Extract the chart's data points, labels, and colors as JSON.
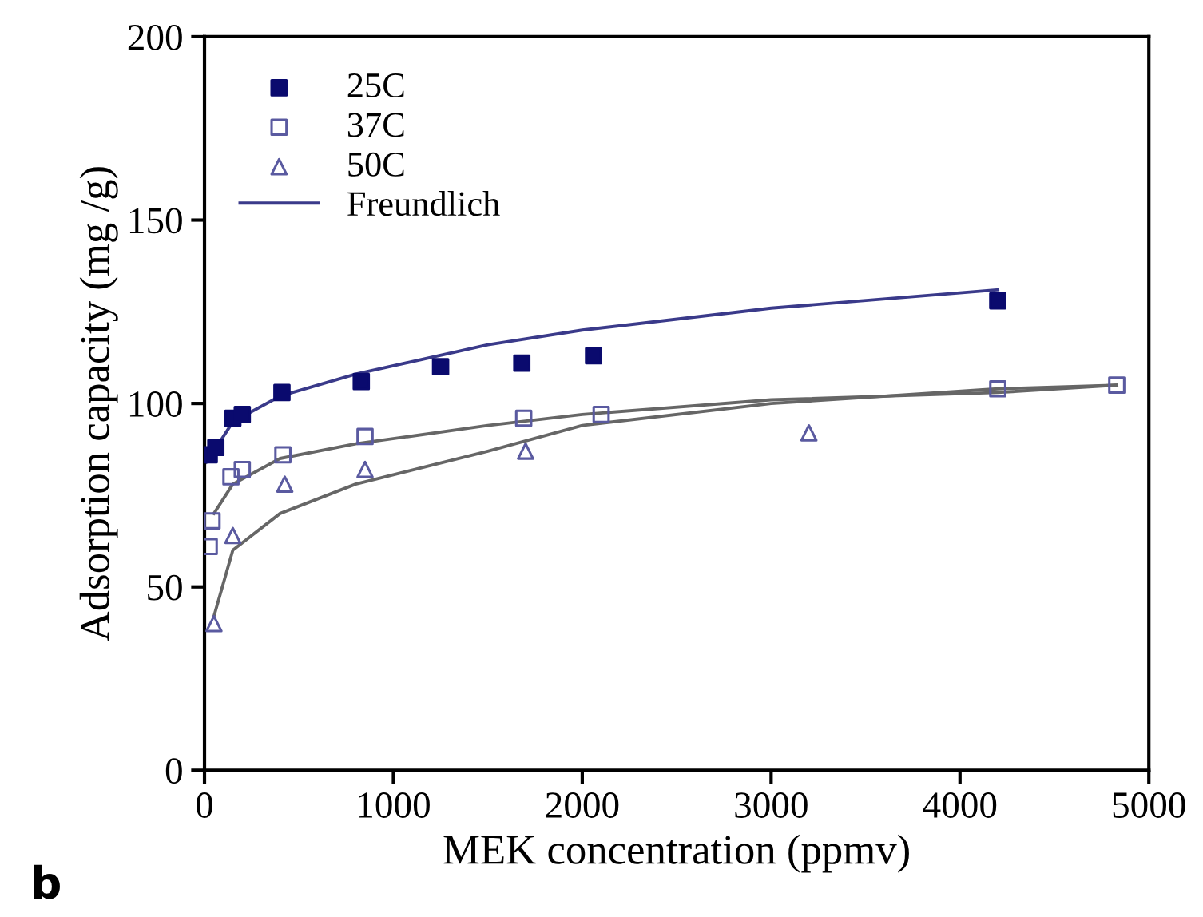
{
  "chart_data": {
    "type": "scatter",
    "xlabel": "MEK concentration (ppmv)",
    "ylabel": "Adsorption capacity (mg /g)",
    "annotations": [
      "b"
    ],
    "xlim": [
      0,
      5000
    ],
    "xticks": [
      0,
      1000,
      2000,
      3000,
      4000,
      5000
    ],
    "ylim": [
      0,
      200
    ],
    "yticks": [
      0,
      50,
      100,
      150,
      200
    ],
    "grid": false,
    "legend": "top left",
    "series": [
      {
        "name": "25C",
        "marker": "square",
        "color": "#0a0a6e",
        "x": [
          25,
          60,
          150,
          200,
          410,
          830,
          1250,
          1680,
          2060,
          4200
        ],
        "values": [
          86,
          88,
          96,
          97,
          103,
          106,
          110,
          111,
          113,
          128
        ]
      },
      {
        "name": "37C",
        "marker": "square",
        "color": "#5a5aa0",
        "x": [
          25,
          40,
          140,
          200,
          415,
          850,
          1690,
          2100,
          4200,
          4830
        ],
        "values": [
          61,
          68,
          80,
          82,
          86,
          91,
          96,
          97,
          104,
          105
        ]
      },
      {
        "name": "50C",
        "marker": "triangle",
        "color": "#5a5aa0",
        "x": [
          50,
          150,
          425,
          850,
          1700,
          3200
        ],
        "values": [
          40,
          64,
          78,
          82,
          87,
          92
        ]
      },
      {
        "name": "Freundlich",
        "type": "line",
        "line_style": "solid",
        "color": "#3a3a8a",
        "x": [
          10,
          50,
          150,
          400,
          800,
          1500,
          2000,
          3000,
          4200
        ],
        "values": [
          84,
          87,
          95,
          102,
          108,
          116,
          120,
          126,
          131
        ]
      },
      {
        "type": "line",
        "line_style": "solid",
        "color": "#666666",
        "x": [
          50,
          150,
          400,
          800,
          1500,
          2000,
          3000,
          4200,
          4830
        ],
        "values": [
          70,
          78,
          85,
          89,
          94,
          97,
          101,
          103,
          105
        ]
      },
      {
        "type": "line",
        "line_style": "solid",
        "color": "#666666",
        "x": [
          50,
          150,
          400,
          800,
          1500,
          2000,
          3000,
          4200,
          4830
        ],
        "values": [
          42,
          60,
          70,
          78,
          87,
          94,
          100,
          104,
          105
        ]
      }
    ]
  }
}
